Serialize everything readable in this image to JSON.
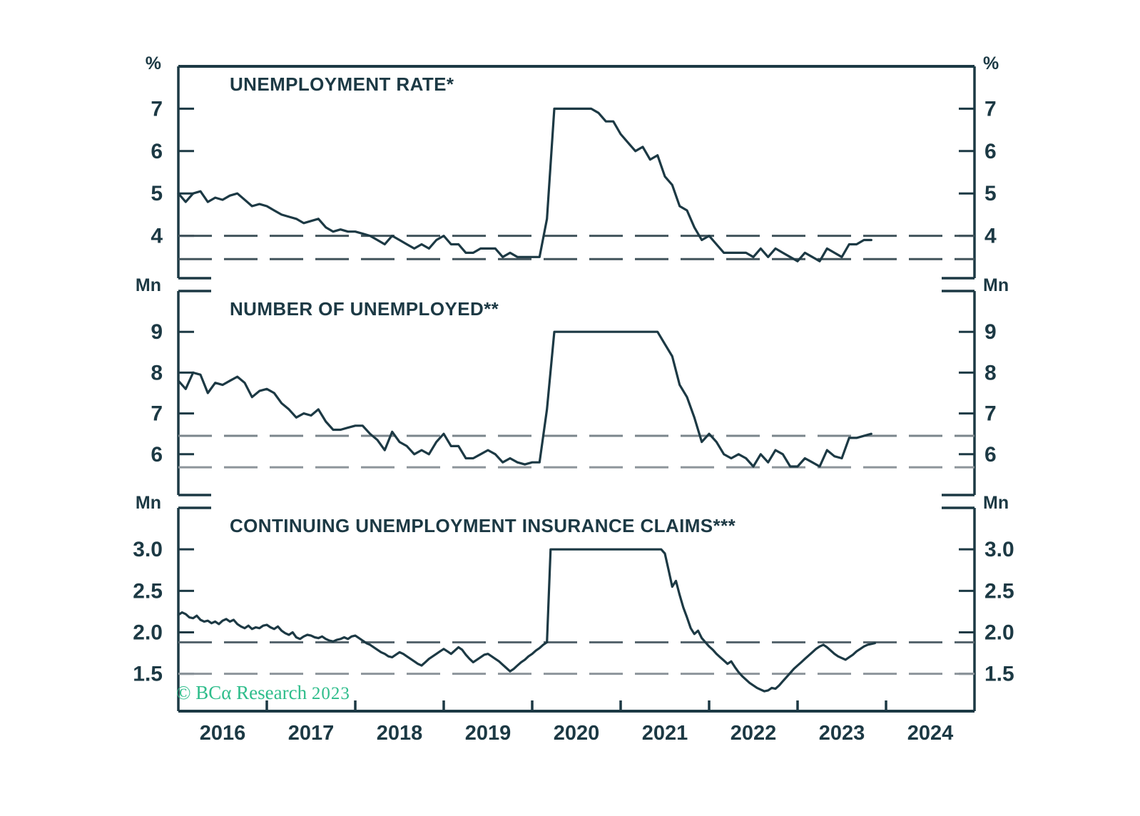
{
  "branding": {
    "copyright_prefix": "© BCα Research",
    "copyright_year": "2023"
  },
  "colors": {
    "ink": "#1c3944",
    "line": "#1c3944",
    "background": "#ffffff",
    "brand_green": "#2ebd8b",
    "dashed_dark": "#42545c",
    "dashed_mid": "#57666e",
    "dashed_light": "#8d959b"
  },
  "x_axis": {
    "xlim": [
      2016.0,
      2025.0
    ],
    "year_labels": [
      "2016",
      "2017",
      "2018",
      "2019",
      "2020",
      "2021",
      "2022",
      "2023",
      "2024"
    ]
  },
  "chart_data": [
    {
      "type": "line",
      "panel": "top",
      "title": "UNEMPLOYMENT RATE*",
      "unit": "%",
      "ylim": [
        3.0,
        8.0
      ],
      "yticks": [
        7,
        6,
        5,
        4
      ],
      "ytick_labels": [
        "7",
        "6",
        "5",
        "4"
      ],
      "clipped_at": 7.0,
      "dashed_lines": [
        {
          "value": 4.0,
          "color": "#42545c"
        },
        {
          "value": 3.45,
          "color": "#42545c"
        }
      ],
      "x_start": 2016.0,
      "x_step": 0.0833333,
      "values": [
        5.0,
        4.8,
        5.0,
        5.05,
        4.8,
        4.9,
        4.85,
        4.95,
        5.0,
        4.85,
        4.7,
        4.75,
        4.7,
        4.6,
        4.5,
        4.45,
        4.4,
        4.3,
        4.35,
        4.4,
        4.2,
        4.1,
        4.15,
        4.1,
        4.1,
        4.05,
        4.0,
        3.9,
        3.8,
        4.0,
        3.9,
        3.8,
        3.7,
        3.8,
        3.7,
        3.9,
        4.0,
        3.8,
        3.8,
        3.6,
        3.6,
        3.7,
        3.7,
        3.7,
        3.5,
        3.6,
        3.5,
        3.5,
        3.5,
        3.5,
        4.4,
        7.0,
        7.0,
        7.0,
        7.0,
        7.0,
        7.0,
        6.9,
        6.7,
        6.7,
        6.4,
        6.2,
        6.0,
        6.1,
        5.8,
        5.9,
        5.4,
        5.2,
        4.7,
        4.6,
        4.2,
        3.9,
        4.0,
        3.8,
        3.6,
        3.6,
        3.6,
        3.6,
        3.5,
        3.7,
        3.5,
        3.7,
        3.6,
        3.5,
        3.4,
        3.6,
        3.5,
        3.4,
        3.7,
        3.6,
        3.5,
        3.8,
        3.8,
        3.9,
        3.9
      ]
    },
    {
      "type": "line",
      "panel": "middle",
      "title": "NUMBER OF UNEMPLOYED**",
      "unit": "Mn",
      "ylim": [
        5.0,
        10.0
      ],
      "yticks": [
        9,
        8,
        7,
        6
      ],
      "ytick_labels": [
        "9",
        "8",
        "7",
        "6"
      ],
      "clipped_at": 9.0,
      "dashed_lines": [
        {
          "value": 6.45,
          "color": "#7b868c"
        },
        {
          "value": 5.68,
          "color": "#8d959b"
        }
      ],
      "x_start": 2016.0,
      "x_step": 0.0833333,
      "values": [
        7.8,
        7.6,
        8.0,
        7.95,
        7.5,
        7.75,
        7.7,
        7.8,
        7.9,
        7.75,
        7.4,
        7.55,
        7.6,
        7.5,
        7.25,
        7.1,
        6.9,
        7.0,
        6.95,
        7.1,
        6.8,
        6.6,
        6.6,
        6.65,
        6.7,
        6.7,
        6.5,
        6.35,
        6.1,
        6.55,
        6.3,
        6.2,
        6.0,
        6.1,
        6.0,
        6.3,
        6.5,
        6.2,
        6.2,
        5.9,
        5.9,
        6.0,
        6.1,
        6.0,
        5.8,
        5.9,
        5.8,
        5.75,
        5.8,
        5.8,
        7.1,
        9.0,
        9.0,
        9.0,
        9.0,
        9.0,
        9.0,
        9.0,
        9.0,
        9.0,
        9.0,
        9.0,
        9.0,
        9.0,
        9.0,
        9.0,
        8.7,
        8.4,
        7.7,
        7.4,
        6.9,
        6.3,
        6.5,
        6.3,
        6.0,
        5.9,
        6.0,
        5.9,
        5.7,
        6.0,
        5.8,
        6.1,
        6.0,
        5.7,
        5.7,
        5.9,
        5.8,
        5.7,
        6.1,
        5.95,
        5.9,
        6.4,
        6.4,
        6.45,
        6.5
      ]
    },
    {
      "type": "line",
      "panel": "bottom",
      "title": "CONTINUING UNEMPLOYMENT INSURANCE CLAIMS***",
      "unit": "Mn",
      "ylim": [
        1.05,
        3.5
      ],
      "yticks": [
        3.0,
        2.5,
        2.0,
        1.5
      ],
      "ytick_labels": [
        "3.0",
        "2.5",
        "2.0",
        "1.5"
      ],
      "clipped_at": 3.0,
      "dashed_lines": [
        {
          "value": 1.88,
          "color": "#57666e"
        },
        {
          "value": 1.5,
          "color": "#8d959b"
        }
      ],
      "x_start": 2016.0,
      "x_step": 0.0416667,
      "values": [
        2.21,
        2.24,
        2.22,
        2.18,
        2.17,
        2.2,
        2.15,
        2.13,
        2.14,
        2.11,
        2.13,
        2.1,
        2.14,
        2.16,
        2.13,
        2.15,
        2.1,
        2.07,
        2.05,
        2.08,
        2.04,
        2.06,
        2.05,
        2.08,
        2.09,
        2.06,
        2.04,
        2.07,
        2.02,
        1.99,
        1.97,
        2.0,
        1.94,
        1.92,
        1.95,
        1.97,
        1.96,
        1.94,
        1.93,
        1.95,
        1.92,
        1.9,
        1.89,
        1.91,
        1.92,
        1.94,
        1.92,
        1.95,
        1.96,
        1.93,
        1.9,
        1.87,
        1.85,
        1.82,
        1.79,
        1.76,
        1.74,
        1.71,
        1.7,
        1.73,
        1.76,
        1.74,
        1.71,
        1.68,
        1.65,
        1.62,
        1.6,
        1.64,
        1.68,
        1.71,
        1.74,
        1.77,
        1.8,
        1.77,
        1.74,
        1.78,
        1.82,
        1.79,
        1.73,
        1.68,
        1.64,
        1.67,
        1.7,
        1.73,
        1.74,
        1.71,
        1.68,
        1.65,
        1.61,
        1.57,
        1.53,
        1.56,
        1.6,
        1.64,
        1.67,
        1.71,
        1.74,
        1.78,
        1.81,
        1.85,
        1.88,
        3.0,
        3.0,
        3.0,
        3.0,
        3.0,
        3.0,
        3.0,
        3.0,
        3.0,
        3.0,
        3.0,
        3.0,
        3.0,
        3.0,
        3.0,
        3.0,
        3.0,
        3.0,
        3.0,
        3.0,
        3.0,
        3.0,
        3.0,
        3.0,
        3.0,
        3.0,
        3.0,
        3.0,
        3.0,
        3.0,
        3.0,
        2.95,
        2.75,
        2.55,
        2.62,
        2.45,
        2.3,
        2.18,
        2.05,
        1.98,
        2.02,
        1.93,
        1.88,
        1.83,
        1.79,
        1.74,
        1.7,
        1.66,
        1.62,
        1.65,
        1.58,
        1.52,
        1.47,
        1.43,
        1.39,
        1.36,
        1.33,
        1.31,
        1.29,
        1.3,
        1.33,
        1.32,
        1.36,
        1.41,
        1.46,
        1.51,
        1.56,
        1.6,
        1.64,
        1.68,
        1.72,
        1.76,
        1.8,
        1.83,
        1.85,
        1.82,
        1.78,
        1.74,
        1.71,
        1.69,
        1.67,
        1.7,
        1.73,
        1.77,
        1.8,
        1.83,
        1.85,
        1.86,
        1.87
      ]
    }
  ]
}
